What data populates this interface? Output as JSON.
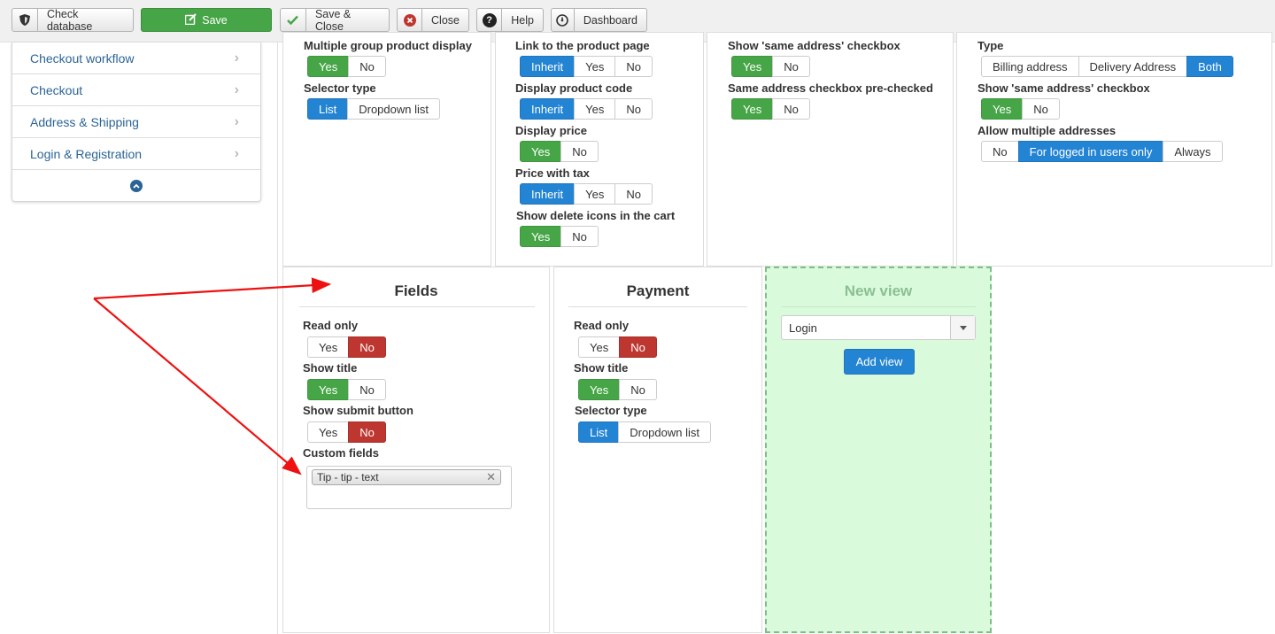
{
  "toolbar": {
    "check_database": "Check database",
    "save": "Save",
    "save_close": "Save & Close",
    "close": "Close",
    "help": "Help",
    "dashboard": "Dashboard"
  },
  "sidebar": {
    "items": [
      {
        "label": "Checkout workflow"
      },
      {
        "label": "Checkout"
      },
      {
        "label": "Address & Shipping"
      },
      {
        "label": "Login & Registration"
      }
    ]
  },
  "panel1": {
    "field1": {
      "label": "Multiple group product display",
      "options": [
        "Yes",
        "No"
      ],
      "active": "Yes"
    },
    "field2": {
      "label": "Selector type",
      "options": [
        "List",
        "Dropdown list"
      ],
      "active": "List"
    }
  },
  "panel2": {
    "field1": {
      "label": "Link to the product page",
      "options": [
        "Inherit",
        "Yes",
        "No"
      ],
      "active": "Inherit"
    },
    "field2": {
      "label": "Display product code",
      "options": [
        "Inherit",
        "Yes",
        "No"
      ],
      "active": "Inherit"
    },
    "field3": {
      "label": "Display price",
      "options": [
        "Yes",
        "No"
      ],
      "active": "Yes"
    },
    "field4": {
      "label": "Price with tax",
      "options": [
        "Inherit",
        "Yes",
        "No"
      ],
      "active": "Inherit"
    },
    "field5": {
      "label": "Show delete icons in the cart",
      "options": [
        "Yes",
        "No"
      ],
      "active": "Yes"
    }
  },
  "panel3": {
    "field1": {
      "label": "Show 'same address' checkbox",
      "options": [
        "Yes",
        "No"
      ],
      "active": "Yes"
    },
    "field2": {
      "label": "Same address checkbox pre-checked",
      "options": [
        "Yes",
        "No"
      ],
      "active": "Yes"
    }
  },
  "panel4": {
    "field1": {
      "label": "Type",
      "options": [
        "Billing address",
        "Delivery Address",
        "Both"
      ],
      "active": "Both"
    },
    "field2": {
      "label": "Show 'same address' checkbox",
      "options": [
        "Yes",
        "No"
      ],
      "active": "Yes"
    },
    "field3": {
      "label": "Allow multiple addresses",
      "options": [
        "No",
        "For logged in users only",
        "Always"
      ],
      "active": "For logged in users only"
    }
  },
  "fields_panel": {
    "title": "Fields",
    "read_only": {
      "label": "Read only",
      "options": [
        "Yes",
        "No"
      ],
      "active": "No"
    },
    "show_title": {
      "label": "Show title",
      "options": [
        "Yes",
        "No"
      ],
      "active": "Yes"
    },
    "show_submit": {
      "label": "Show submit button",
      "options": [
        "Yes",
        "No"
      ],
      "active": "No"
    },
    "custom_fields": {
      "label": "Custom fields",
      "chip": "Tip - tip - text"
    }
  },
  "payment_panel": {
    "title": "Payment",
    "read_only": {
      "label": "Read only",
      "options": [
        "Yes",
        "No"
      ],
      "active": "No"
    },
    "show_title": {
      "label": "Show title",
      "options": [
        "Yes",
        "No"
      ],
      "active": "Yes"
    },
    "selector_type": {
      "label": "Selector type",
      "options": [
        "List",
        "Dropdown list"
      ],
      "active": "List"
    }
  },
  "new_view": {
    "title": "New view",
    "select_value": "Login",
    "add_button": "Add view"
  },
  "colors": {
    "green": "#46a546",
    "blue": "#2384d3",
    "red": "#bd362f",
    "link": "#2a6496",
    "new_view_bg": "#d9fbdc",
    "arrow": "#ee1111"
  }
}
